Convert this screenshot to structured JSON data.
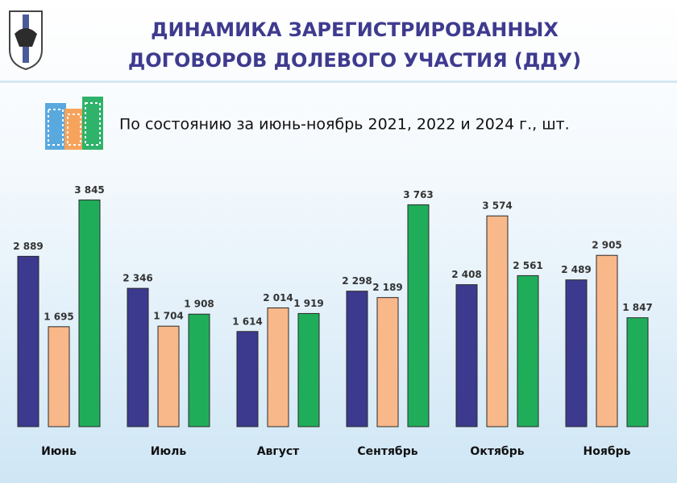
{
  "chart_data": {
    "type": "bar",
    "title": [
      "ДИНАМИКА ЗАРЕГИСТРИРОВАННЫХ",
      "ДОГОВОРОВ ДОЛЕВОГО УЧАСТИЯ (ДДУ)"
    ],
    "subtitle": "По состоянию за июнь-ноябрь 2021, 2022 и 2024 г., шт.",
    "categories": [
      "Июнь",
      "Июль",
      "Август",
      "Сентябрь",
      "Октябрь",
      "Ноябрь"
    ],
    "ylim": [
      0,
      4000
    ],
    "series": [
      {
        "color": "#3b3a8e",
        "values": [
          2889,
          2346,
          1614,
          2298,
          2408,
          2489
        ],
        "value_labels": [
          "2 889",
          "2 346",
          "1 614",
          "2 298",
          "2 408",
          "2 489"
        ]
      },
      {
        "color": "#f9b88a",
        "values": [
          1695,
          1704,
          2014,
          2189,
          3574,
          2905
        ],
        "value_labels": [
          "1 695",
          "1 704",
          "2 014",
          "2 189",
          "3 574",
          "2 905"
        ]
      },
      {
        "color": "#20ad5a",
        "values": [
          3845,
          1908,
          1919,
          3763,
          2561,
          1847
        ],
        "value_labels": [
          "3 845",
          "1 908",
          "1 919",
          "3 763",
          "2 561",
          "1 847"
        ]
      }
    ]
  }
}
